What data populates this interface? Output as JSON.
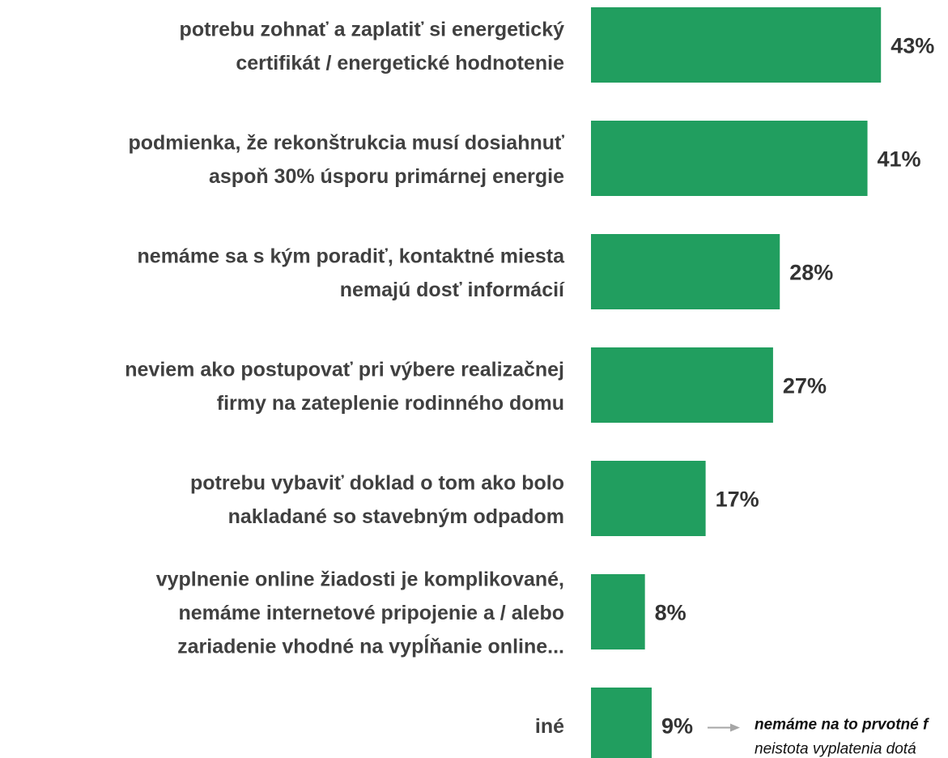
{
  "chart_data": {
    "type": "bar",
    "orientation": "horizontal",
    "color": "#219e5f",
    "categories": [
      [
        "potrebu zohnať a zaplatiť si energetický",
        "certifikát / energetické hodnotenie"
      ],
      [
        "podmienka, že rekonštrukcia musí dosiahnuť",
        "aspoň 30% úsporu primárnej energie"
      ],
      [
        "nemáme sa s kým poradiť, kontaktné miesta",
        "nemajú dosť informácií"
      ],
      [
        "neviem ako postupovať pri výbere realizačnej",
        "firmy na zateplenie rodinného domu"
      ],
      [
        "potrebu vybaviť doklad o tom ako bolo",
        "nakladané so stavebným odpadom"
      ],
      [
        "vyplnenie online žiadosti je komplikované,",
        "nemáme internetové pripojenie a / alebo",
        "zariadenie vhodné na vypĺňanie online..."
      ],
      [
        "iné"
      ]
    ],
    "values": [
      43,
      41,
      28,
      27,
      17,
      8,
      9
    ],
    "value_labels": [
      "43%",
      "41%",
      "28%",
      "27%",
      "17%",
      "8%",
      "9%"
    ],
    "annotations": [
      "nemáme na to prvotné f",
      "neistota vyplatenia dotá"
    ]
  }
}
